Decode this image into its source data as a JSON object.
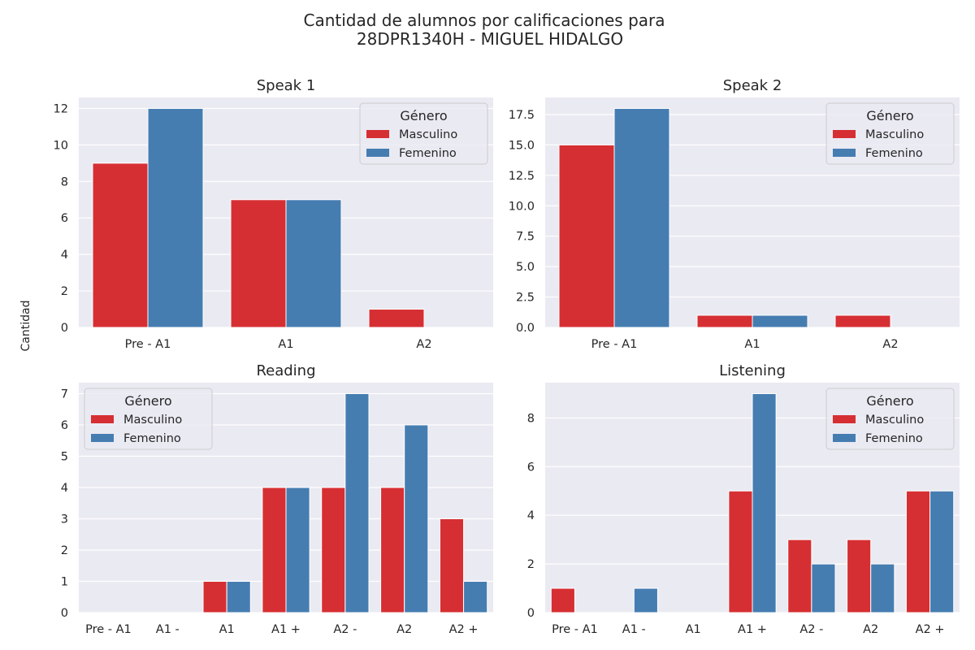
{
  "figure": {
    "title_line1": "Cantidad de alumnos por calificaciones para",
    "title_line2": "28DPR1340H - MIGUEL HIDALGO",
    "ylabel": "Cantidad"
  },
  "colors": {
    "masculino": "#d62f33",
    "femenino": "#467db1",
    "plot_background": "#eaeaf2",
    "grid": "#ffffff"
  },
  "legend": {
    "title": "Género",
    "entries": [
      "Masculino",
      "Femenino"
    ]
  },
  "chart_data": [
    {
      "type": "bar",
      "title": "Speak 1",
      "categories": [
        "Pre - A1",
        "A1",
        "A2"
      ],
      "series": [
        {
          "name": "Masculino",
          "values": [
            9,
            7,
            1
          ]
        },
        {
          "name": "Femenino",
          "values": [
            12,
            7,
            0
          ]
        }
      ],
      "ylim": [
        0,
        12.6
      ],
      "yticks": [
        "0",
        "2",
        "4",
        "6",
        "8",
        "10",
        "12"
      ],
      "ytick_values": [
        0,
        2,
        4,
        6,
        8,
        10,
        12
      ],
      "legend_position": "top-right",
      "grid": true
    },
    {
      "type": "bar",
      "title": "Speak 2",
      "categories": [
        "Pre - A1",
        "A1",
        "A2"
      ],
      "series": [
        {
          "name": "Masculino",
          "values": [
            15,
            1,
            1
          ]
        },
        {
          "name": "Femenino",
          "values": [
            18,
            1,
            0
          ]
        }
      ],
      "ylim": [
        0,
        18.9
      ],
      "yticks": [
        "0.0",
        "2.5",
        "5.0",
        "7.5",
        "10.0",
        "12.5",
        "15.0",
        "17.5"
      ],
      "ytick_values": [
        0,
        2.5,
        5,
        7.5,
        10,
        12.5,
        15,
        17.5
      ],
      "legend_position": "top-right",
      "grid": true
    },
    {
      "type": "bar",
      "title": "Reading",
      "categories": [
        "Pre - A1",
        "A1 -",
        "A1",
        "A1 +",
        "A2 -",
        "A2",
        "A2 +"
      ],
      "series": [
        {
          "name": "Masculino",
          "values": [
            0,
            0,
            1,
            4,
            4,
            4,
            3
          ]
        },
        {
          "name": "Femenino",
          "values": [
            0,
            0,
            1,
            4,
            7,
            6,
            1
          ]
        }
      ],
      "ylim": [
        0,
        7.35
      ],
      "yticks": [
        "0",
        "1",
        "2",
        "3",
        "4",
        "5",
        "6",
        "7"
      ],
      "ytick_values": [
        0,
        1,
        2,
        3,
        4,
        5,
        6,
        7
      ],
      "legend_position": "top-left",
      "grid": true
    },
    {
      "type": "bar",
      "title": "Listening",
      "categories": [
        "Pre - A1",
        "A1 -",
        "A1",
        "A1 +",
        "A2 -",
        "A2",
        "A2 +"
      ],
      "series": [
        {
          "name": "Masculino",
          "values": [
            1,
            0,
            0,
            5,
            3,
            3,
            5
          ]
        },
        {
          "name": "Femenino",
          "values": [
            0,
            1,
            0,
            9,
            2,
            2,
            5
          ]
        }
      ],
      "ylim": [
        0,
        9.45
      ],
      "yticks": [
        "0",
        "2",
        "4",
        "6",
        "8"
      ],
      "ytick_values": [
        0,
        2,
        4,
        6,
        8
      ],
      "legend_position": "top-right",
      "grid": true
    }
  ]
}
